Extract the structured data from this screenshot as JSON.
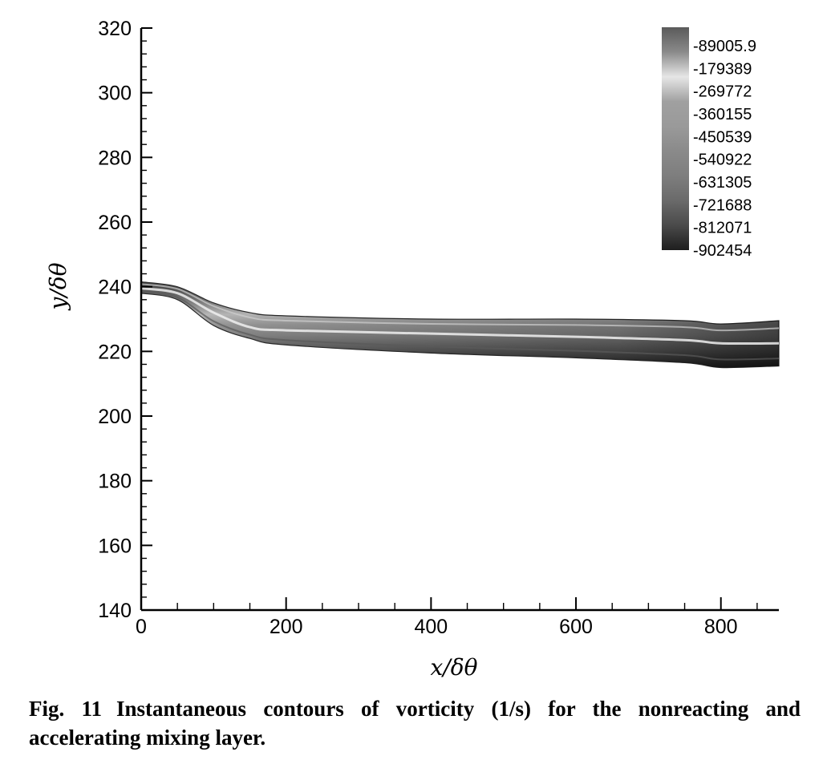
{
  "chart_data": {
    "type": "heatmap",
    "title": "",
    "xlabel": "x/δθ",
    "ylabel": "y/δθ",
    "xlim": [
      0,
      880
    ],
    "ylim": [
      140,
      320
    ],
    "x_ticks": [
      0,
      200,
      400,
      600,
      800
    ],
    "y_ticks": [
      140,
      160,
      180,
      200,
      220,
      240,
      260,
      280,
      300,
      320
    ],
    "grid": false,
    "colorbar": {
      "placement": "top-right",
      "levels": [
        "-89005.9",
        "-179389",
        "-269772",
        "-360155",
        "-450539",
        "-540922",
        "-631305",
        "-721688",
        "-812071",
        "-902454"
      ],
      "gradient": [
        "#5a5a5a",
        "#8a8a8a",
        "#e6e6e6",
        "#a0a0a0",
        "#9a9a9a",
        "#8a8a8a",
        "#7e7e7e",
        "#6a6a6a",
        "#4a4a4a",
        "#1e1e1e"
      ]
    },
    "mixing_layer": {
      "upper_edge": [
        [
          0,
          241.5
        ],
        [
          50,
          240
        ],
        [
          100,
          235
        ],
        [
          150,
          232
        ],
        [
          200,
          231
        ],
        [
          400,
          230
        ],
        [
          600,
          230
        ],
        [
          750,
          229.5
        ],
        [
          800,
          228.5
        ],
        [
          880,
          229.5
        ]
      ],
      "lower_edge": [
        [
          0,
          238
        ],
        [
          50,
          236
        ],
        [
          100,
          228
        ],
        [
          150,
          224
        ],
        [
          200,
          222
        ],
        [
          400,
          219.5
        ],
        [
          600,
          218
        ],
        [
          750,
          216.5
        ],
        [
          800,
          215
        ],
        [
          880,
          215.5
        ]
      ],
      "centerline": [
        [
          0,
          239.5
        ],
        [
          50,
          238
        ],
        [
          100,
          232
        ],
        [
          150,
          227.5
        ],
        [
          200,
          226.5
        ],
        [
          400,
          225.5
        ],
        [
          600,
          224.5
        ],
        [
          750,
          223.5
        ],
        [
          800,
          222.5
        ],
        [
          880,
          222.5
        ]
      ]
    }
  },
  "caption": {
    "figure_number": "Fig. 11",
    "text": "Instantaneous contours of vorticity (1/s) for the nonreacting and accelerating mixing layer."
  }
}
